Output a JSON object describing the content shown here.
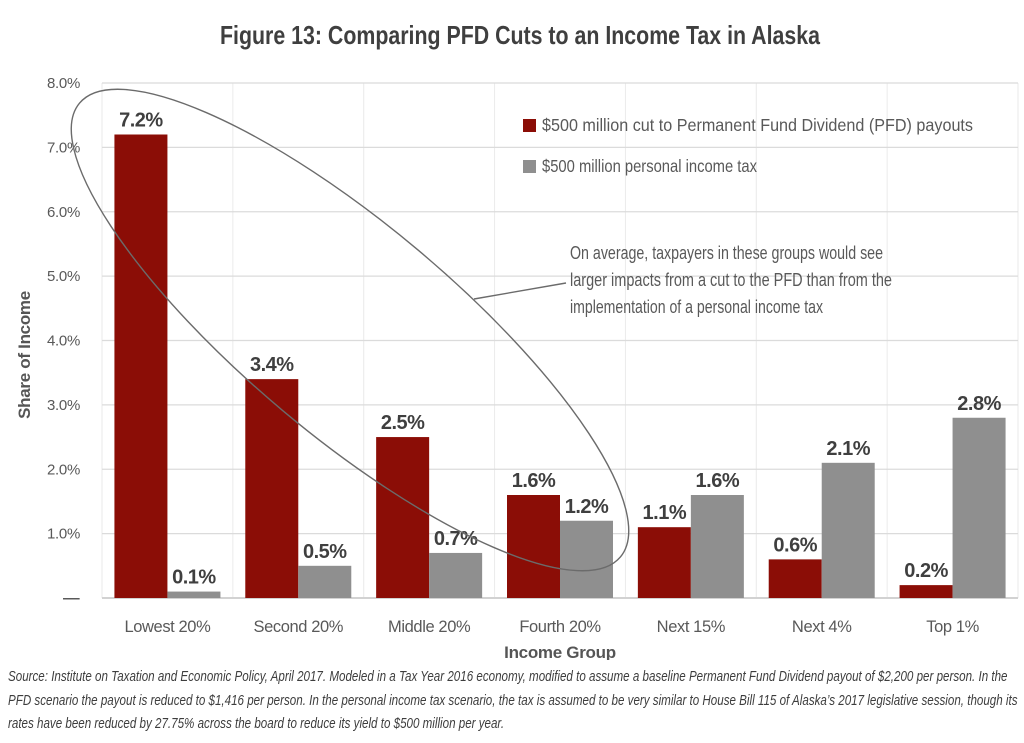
{
  "title": "Figure 13: Comparing PFD Cuts to an Income Tax in Alaska",
  "source_note": "Source: Institute on Taxation and Economic Policy, April 2017.  Modeled in a Tax Year 2016 economy, modified to assume a baseline Permanent Fund Dividend payout of $2,200 per person. In the PFD scenario the payout is reduced to $1,416 per person. In the personal income tax scenario, the tax is assumed to be very similar to House Bill 115 of Alaska’s 2017 legislative session, though its rates have been reduced by 27.75% across the board to reduce its yield to $500 million per year.",
  "chart_data": {
    "type": "bar",
    "title": "Figure 13: Comparing PFD Cuts to an Income Tax in Alaska",
    "categories": [
      "Lowest 20%",
      "Second 20%",
      "Middle 20%",
      "Fourth 20%",
      "Next 15%",
      "Next 4%",
      "Top 1%"
    ],
    "series": [
      {
        "name": "$500 million cut to Permanent Fund Dividend (PFD) payouts",
        "color": "#8B0D06",
        "values": [
          7.2,
          3.4,
          2.5,
          1.6,
          1.1,
          0.6,
          0.2
        ],
        "labels": [
          "7.2%",
          "3.4%",
          "2.5%",
          "1.6%",
          "1.1%",
          "0.6%",
          "0.2%"
        ]
      },
      {
        "name": "$500 million personal income tax",
        "color": "#8F8F8F",
        "values": [
          0.1,
          0.5,
          0.7,
          1.2,
          1.6,
          2.1,
          2.8
        ],
        "labels": [
          "0.1%",
          "0.5%",
          "0.7%",
          "1.2%",
          "1.6%",
          "2.1%",
          "2.8%"
        ]
      }
    ],
    "xlabel": "Income Group",
    "ylabel": "Share of Income",
    "ylim": [
      0,
      8
    ],
    "ytick_labels": [
      "–",
      "1.0%",
      "2.0%",
      "3.0%",
      "4.0%",
      "5.0%",
      "6.0%",
      "7.0%",
      "8.0%"
    ],
    "grid": "horizontal-major",
    "legend_position": "top-right",
    "annotation": {
      "shape": "ellipse-around-first-four-groups",
      "lines": [
        "On average, taxpayers in these groups would see",
        "larger impacts from a cut to the PFD than from the",
        "implementation of a personal income tax"
      ]
    },
    "colors": {
      "pfd_cut_bar": "#8B0D06",
      "income_tax_bar": "#8F8F8F",
      "gridline": "#DBDBDB",
      "axis_text": "#595959",
      "data_label_text": "#3F3F3F",
      "annotation_stroke": "#6B6B6B"
    }
  }
}
